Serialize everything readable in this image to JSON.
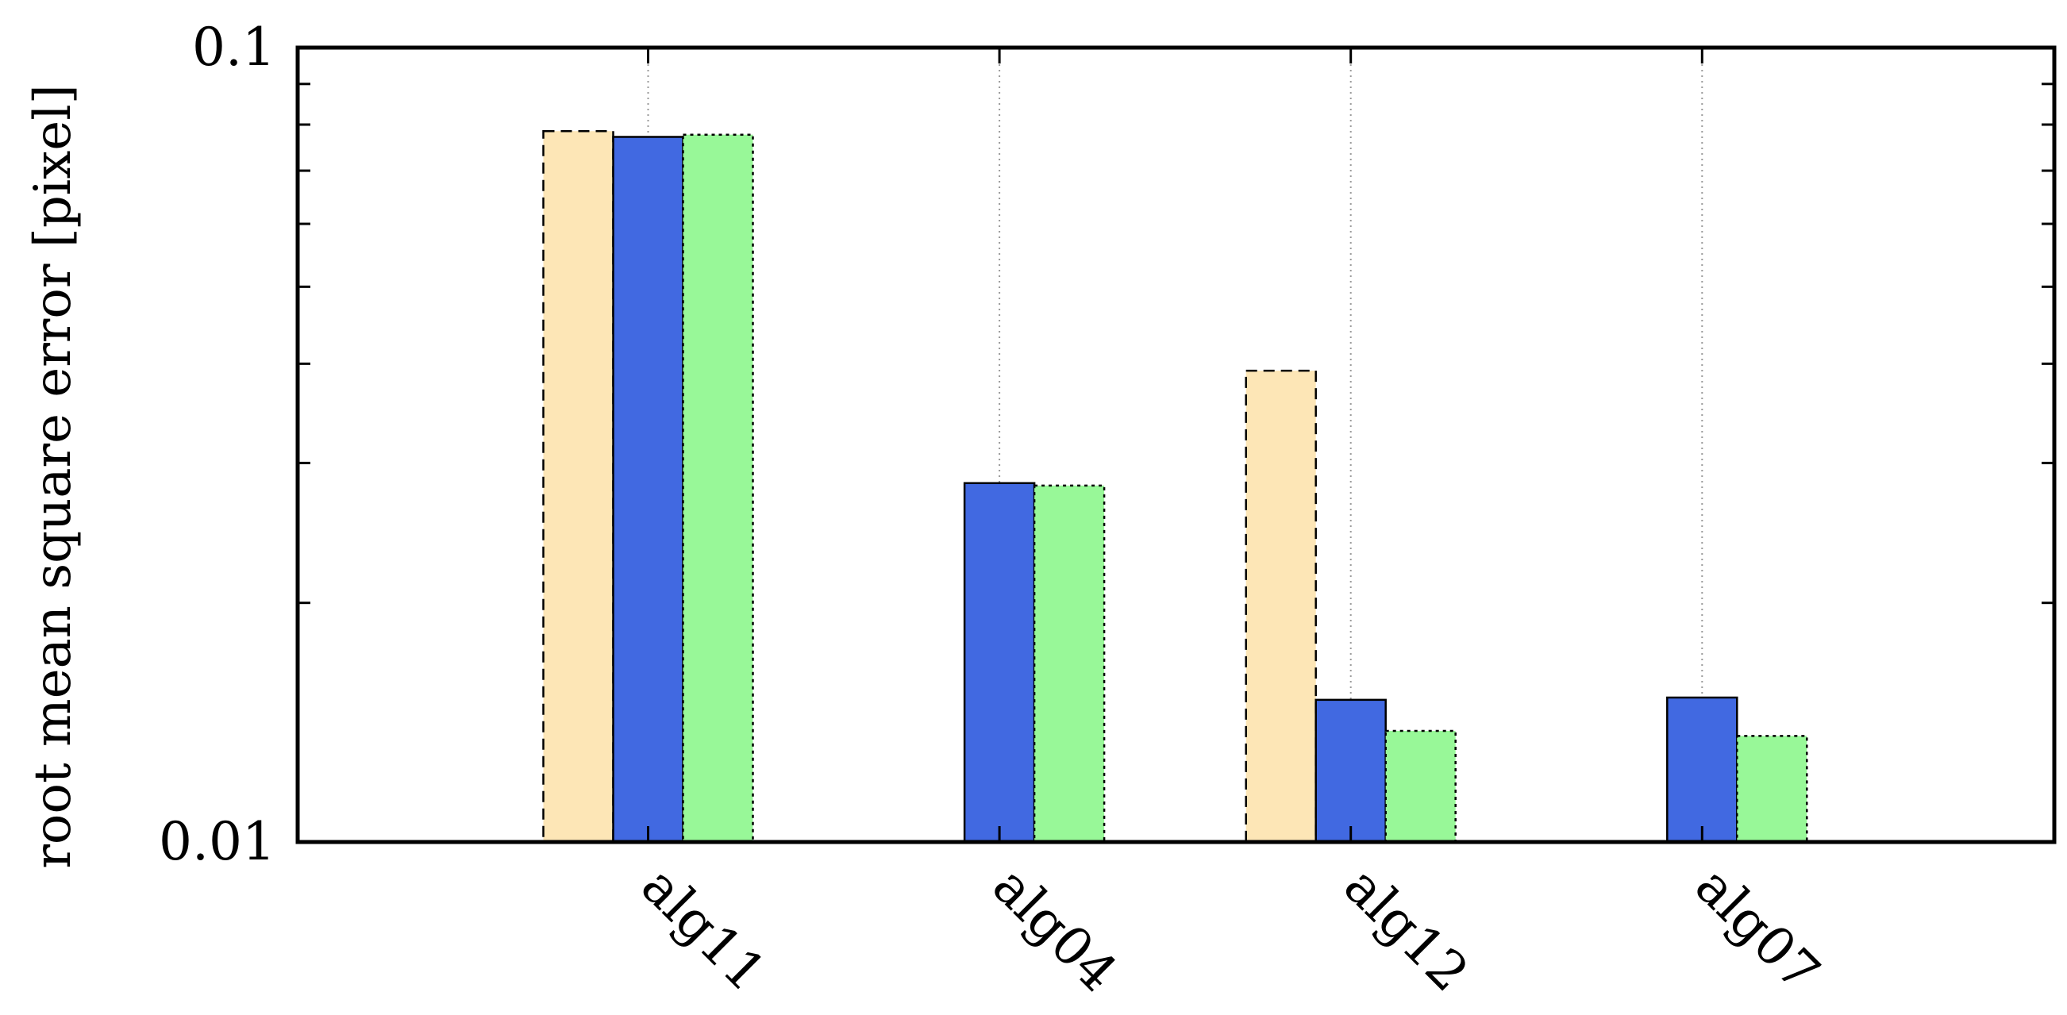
{
  "chart_data": {
    "type": "bar",
    "title": "",
    "xlabel": "",
    "ylabel": "root mean square error [pixel]",
    "yscale": "log",
    "ylim": [
      0.01,
      0.1
    ],
    "yticklabels": [
      {
        "value": 0.1,
        "label": "0.1"
      },
      {
        "value": 0.01,
        "label": "0.01"
      }
    ],
    "grid": "vertical dotted lines at categories",
    "legend": "none",
    "categories": [
      "alg11",
      "alg04",
      "alg12",
      "alg07"
    ],
    "series": [
      {
        "color": "#FDE6B6",
        "border": "dashed",
        "values": [
          0.0785,
          null,
          0.0392,
          null
        ]
      },
      {
        "color": "#4169E1",
        "border": "solid",
        "values": [
          0.0772,
          0.0283,
          0.0151,
          0.0152
        ]
      },
      {
        "color": "#98F898",
        "border": "dotted",
        "values": [
          0.0777,
          0.0281,
          0.0138,
          0.0136
        ]
      }
    ]
  }
}
